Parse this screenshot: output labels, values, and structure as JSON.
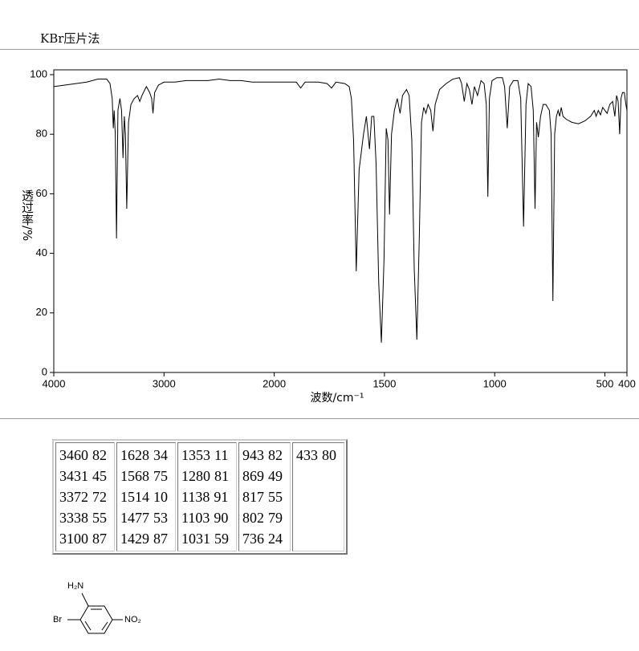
{
  "header": {
    "title": "KBr压片法"
  },
  "chart_data": {
    "type": "line",
    "xlabel": "波数/cm⁻¹",
    "ylabel": "透过率/%",
    "xlim": [
      4000,
      400
    ],
    "ylim": [
      0,
      100
    ],
    "xticks": [
      4000,
      3000,
      2000,
      1500,
      1000,
      500,
      400
    ],
    "yticks": [
      0,
      20,
      40,
      60,
      80,
      100
    ],
    "color": "#000000",
    "x": [
      4000,
      3900,
      3800,
      3700,
      3600,
      3520,
      3490,
      3470,
      3460,
      3452,
      3442,
      3431,
      3418,
      3400,
      3385,
      3372,
      3360,
      3350,
      3338,
      3322,
      3300,
      3270,
      3240,
      3220,
      3200,
      3160,
      3130,
      3112,
      3100,
      3085,
      3050,
      3000,
      2900,
      2800,
      2700,
      2600,
      2500,
      2400,
      2300,
      2200,
      2100,
      2000,
      1950,
      1900,
      1880,
      1860,
      1800,
      1760,
      1740,
      1720,
      1680,
      1660,
      1650,
      1640,
      1628,
      1615,
      1605,
      1595,
      1582,
      1568,
      1558,
      1548,
      1538,
      1526,
      1514,
      1502,
      1492,
      1484,
      1477,
      1468,
      1455,
      1442,
      1429,
      1418,
      1400,
      1388,
      1376,
      1365,
      1353,
      1342,
      1332,
      1322,
      1312,
      1302,
      1290,
      1280,
      1270,
      1250,
      1220,
      1190,
      1160,
      1150,
      1138,
      1126,
      1115,
      1103,
      1092,
      1078,
      1062,
      1048,
      1038,
      1031,
      1024,
      1012,
      990,
      965,
      955,
      943,
      932,
      915,
      895,
      882,
      869,
      858,
      848,
      835,
      825,
      817,
      810,
      802,
      792,
      780,
      768,
      752,
      744,
      736,
      728,
      720,
      712,
      705,
      698,
      690,
      675,
      650,
      620,
      590,
      565,
      548,
      540,
      530,
      520,
      510,
      500,
      490,
      478,
      465,
      455,
      447,
      440,
      433,
      427,
      420,
      412,
      405,
      400
    ],
    "values": [
      96,
      96.5,
      97,
      97.5,
      98.5,
      98.5,
      97,
      92,
      82,
      88,
      80,
      45,
      88,
      92,
      88,
      72,
      86,
      80,
      55,
      84,
      90,
      92,
      93,
      91,
      93,
      96,
      94,
      92,
      87,
      94,
      96.5,
      97.5,
      97.5,
      98,
      98,
      98,
      98.5,
      98,
      98,
      97.5,
      97.5,
      97.5,
      97.5,
      97.5,
      95.5,
      97.5,
      97.5,
      97,
      95.5,
      97.5,
      97,
      96,
      92,
      78,
      34,
      68,
      74,
      80,
      86,
      75,
      86,
      86,
      70,
      30,
      10,
      38,
      82,
      78,
      53,
      80,
      88,
      92,
      87,
      93,
      95,
      93,
      78,
      35,
      11,
      45,
      84,
      89,
      87,
      90,
      88,
      81,
      90,
      95,
      97,
      98.5,
      99,
      97,
      91,
      97,
      95,
      90,
      96,
      93,
      98,
      97,
      90,
      59,
      92,
      98,
      99,
      99,
      96,
      82,
      96,
      98,
      98,
      92,
      49,
      90,
      97,
      96,
      88,
      55,
      84,
      79,
      86,
      90,
      90,
      88,
      80,
      24,
      80,
      86,
      88,
      86,
      89,
      86,
      85,
      84,
      83.5,
      84.5,
      86,
      88,
      86,
      88,
      86.5,
      89,
      88,
      87,
      90,
      91,
      86,
      93,
      91,
      80,
      92,
      94,
      94,
      90,
      88
    ]
  },
  "table": {
    "columns": [
      [
        [
          3460,
          82
        ],
        [
          3431,
          45
        ],
        [
          3372,
          72
        ],
        [
          3338,
          55
        ],
        [
          3100,
          87
        ]
      ],
      [
        [
          1628,
          34
        ],
        [
          1568,
          75
        ],
        [
          1514,
          10
        ],
        [
          1477,
          53
        ],
        [
          1429,
          87
        ]
      ],
      [
        [
          1353,
          11
        ],
        [
          1280,
          81
        ],
        [
          1138,
          91
        ],
        [
          1103,
          90
        ],
        [
          1031,
          59
        ]
      ],
      [
        [
          943,
          82
        ],
        [
          869,
          49
        ],
        [
          817,
          55
        ],
        [
          802,
          79
        ],
        [
          736,
          24
        ]
      ],
      [
        [
          433,
          80
        ]
      ]
    ]
  },
  "structure": {
    "labels": [
      "H₂N",
      "Br",
      "NO₂"
    ]
  }
}
